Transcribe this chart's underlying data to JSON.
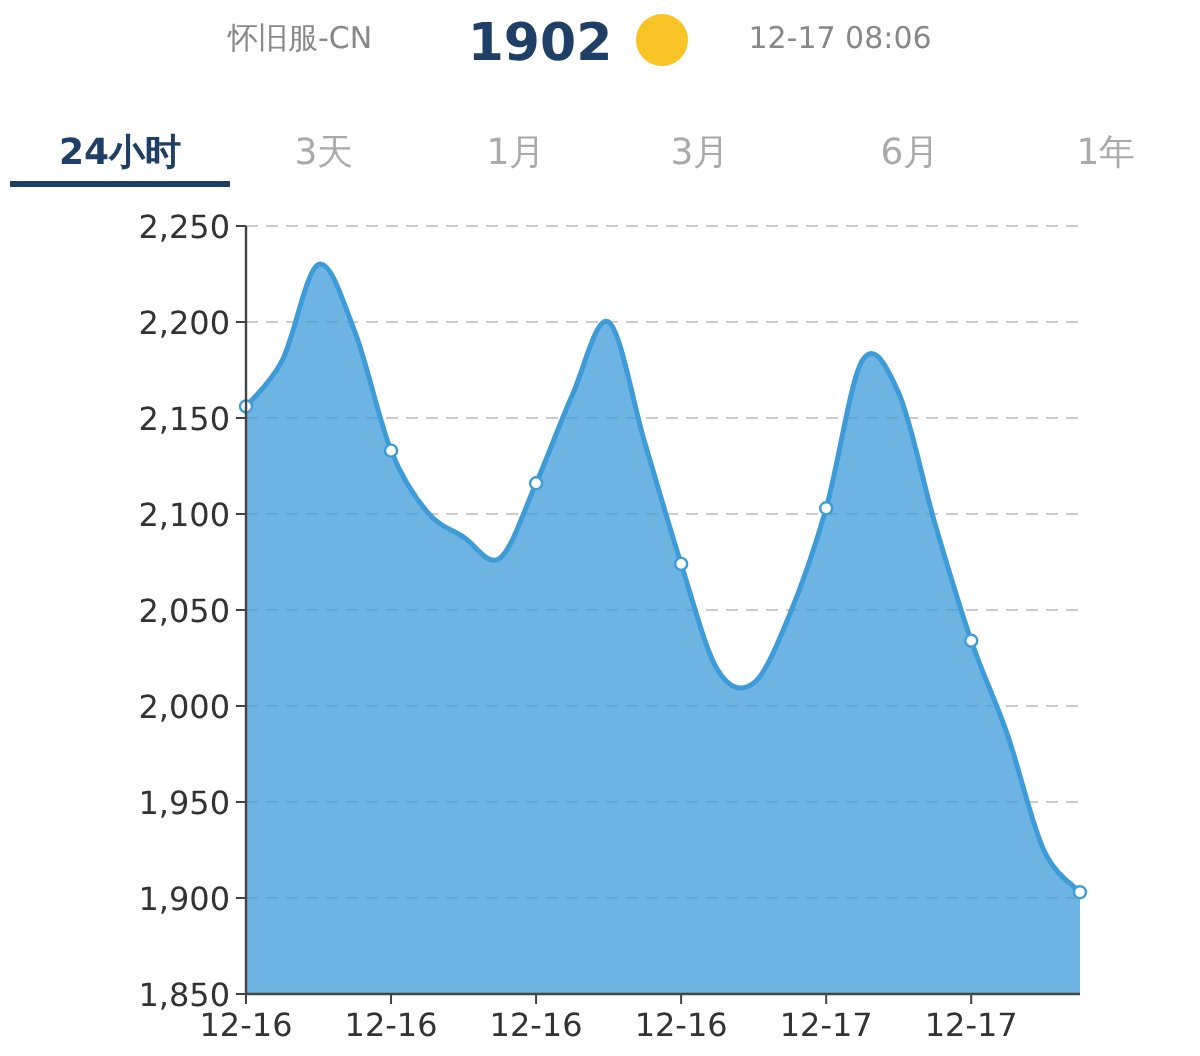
{
  "chart_data": {
    "type": "area",
    "title": "怀旧服-CN",
    "annotations": [
      "1902",
      "12-17 08:06",
      "24小时",
      "3天",
      "1月",
      "3月",
      "6月",
      "1年"
    ],
    "categories": [
      "12-16",
      null,
      null,
      null,
      "12-16",
      null,
      null,
      null,
      "12-16",
      null,
      null,
      null,
      "12-16",
      null,
      null,
      null,
      "12-17",
      null,
      null,
      null,
      "12-17",
      null,
      null,
      null
    ],
    "series": [
      {
        "color": "#3d9bd8",
        "values": [
          2156,
          2180,
          2230,
          2195,
          2133,
          2101,
          2088,
          2077,
          2116,
          2162,
          2200,
          2137,
          2074,
          2019,
          2012,
          2048,
          2103,
          2180,
          2163,
          2095,
          2034,
          1985,
          1925,
          1903
        ]
      },
      {
        "type": "scatter",
        "marker": "circle",
        "color": "#ffffff",
        "values": [
          2156,
          null,
          null,
          null,
          2133,
          null,
          null,
          null,
          2116,
          null,
          null,
          null,
          2074,
          null,
          null,
          null,
          2103,
          null,
          null,
          null,
          2034,
          null,
          null,
          1903
        ]
      }
    ],
    "ylim": [
      1850,
      2250
    ],
    "yticks": [
      {
        "value": 1850,
        "label": "1,850"
      },
      {
        "value": 1900,
        "label": "1,900"
      },
      {
        "value": 1950,
        "label": "1,950"
      },
      {
        "value": 2000,
        "label": "2,000"
      },
      {
        "value": 2050,
        "label": "2,050"
      },
      {
        "value": 2100,
        "label": "2,100"
      },
      {
        "value": 2150,
        "label": "2,150"
      },
      {
        "value": 2200,
        "label": "2,200"
      },
      {
        "value": 2250,
        "label": "2,250"
      }
    ],
    "grid": "y"
  }
}
